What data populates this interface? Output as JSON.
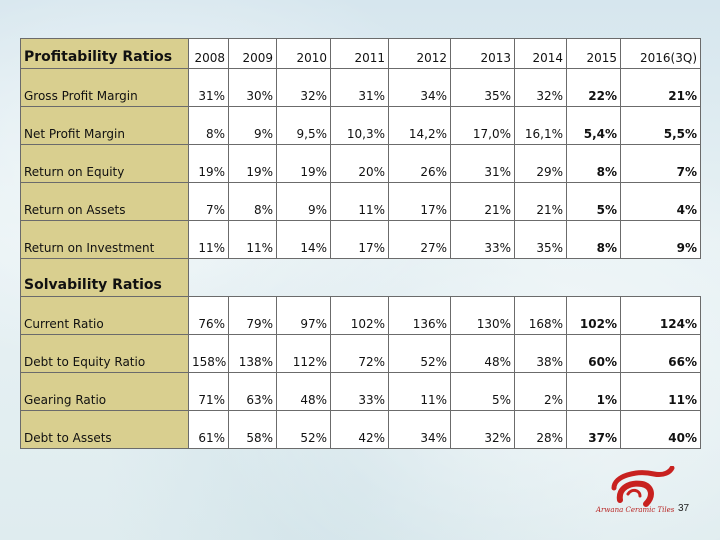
{
  "profitability": {
    "header_label": "Profitability Ratios",
    "years": [
      "2008",
      "2009",
      "2010",
      "2011",
      "2012",
      "2013",
      "2014",
      "2015",
      "2016(3Q)"
    ],
    "rows": [
      {
        "label": "Gross Profit Margin",
        "values": [
          "31%",
          "30%",
          "32%",
          "31%",
          "34%",
          "35%",
          "32%",
          "22%",
          "21%"
        ]
      },
      {
        "label": "Net Profit Margin",
        "values": [
          "8%",
          "9%",
          "9,5%",
          "10,3%",
          "14,2%",
          "17,0%",
          "16,1%",
          "5,4%",
          "5,5%"
        ]
      },
      {
        "label": "Return on Equity",
        "values": [
          "19%",
          "19%",
          "19%",
          "20%",
          "26%",
          "31%",
          "29%",
          "8%",
          "7%"
        ]
      },
      {
        "label": "Return on Assets",
        "values": [
          "7%",
          "8%",
          "9%",
          "11%",
          "17%",
          "21%",
          "21%",
          "5%",
          "4%"
        ]
      },
      {
        "label": "Return on Investment",
        "values": [
          "11%",
          "11%",
          "14%",
          "17%",
          "27%",
          "33%",
          "35%",
          "8%",
          "9%"
        ]
      }
    ]
  },
  "solvability": {
    "header_label": "Solvability Ratios",
    "rows": [
      {
        "label": "Current Ratio",
        "values": [
          "76%",
          "79%",
          "97%",
          "102%",
          "136%",
          "130%",
          "168%",
          "102%",
          "124%"
        ]
      },
      {
        "label": "Debt to Equity Ratio",
        "values": [
          "158%",
          "138%",
          "112%",
          "72%",
          "52%",
          "48%",
          "38%",
          "60%",
          "66%"
        ]
      },
      {
        "label": "Gearing Ratio",
        "values": [
          "71%",
          "63%",
          "48%",
          "33%",
          "11%",
          "5%",
          "2%",
          "1%",
          "11%"
        ]
      },
      {
        "label": "Debt to Assets",
        "values": [
          "61%",
          "58%",
          "52%",
          "42%",
          "34%",
          "32%",
          "28%",
          "37%",
          "40%"
        ]
      }
    ]
  },
  "logo": {
    "text": "Arwana Ceramic Tiles",
    "icon": "arwana-logo-icon",
    "color": "#c8211f"
  },
  "page_number": "37",
  "colors": {
    "label_cell": "#d9cf8f",
    "border": "#6b6b6b"
  }
}
